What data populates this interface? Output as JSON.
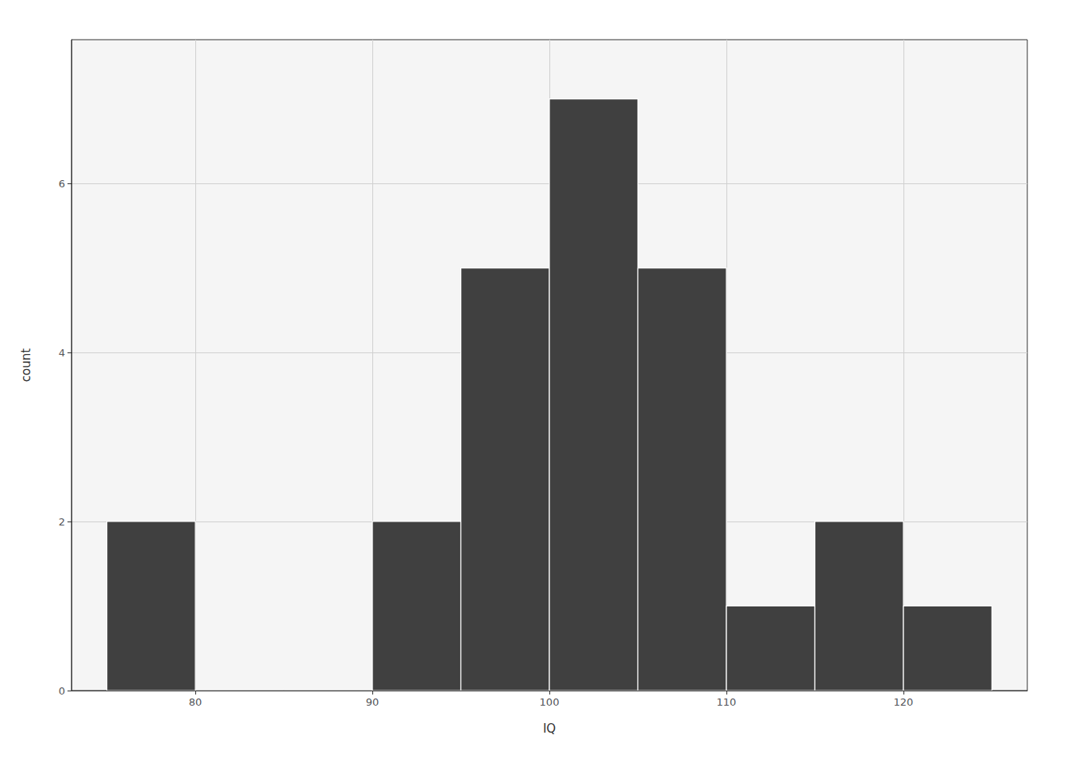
{
  "chart_data": {
    "type": "histogram",
    "bins": [
      75,
      80,
      85,
      90,
      95,
      100,
      105,
      110,
      115,
      120,
      125
    ],
    "counts": [
      2,
      0,
      0,
      2,
      5,
      7,
      5,
      1,
      2,
      1
    ],
    "color": "#404040",
    "xlabel": "IQ",
    "ylabel": "count",
    "xlim": [
      73,
      127
    ],
    "xticks": [
      80,
      90,
      100,
      110,
      120
    ],
    "ylim": [
      0,
      7.7
    ],
    "yticks": [
      0,
      2,
      4,
      6
    ],
    "grid": true
  }
}
